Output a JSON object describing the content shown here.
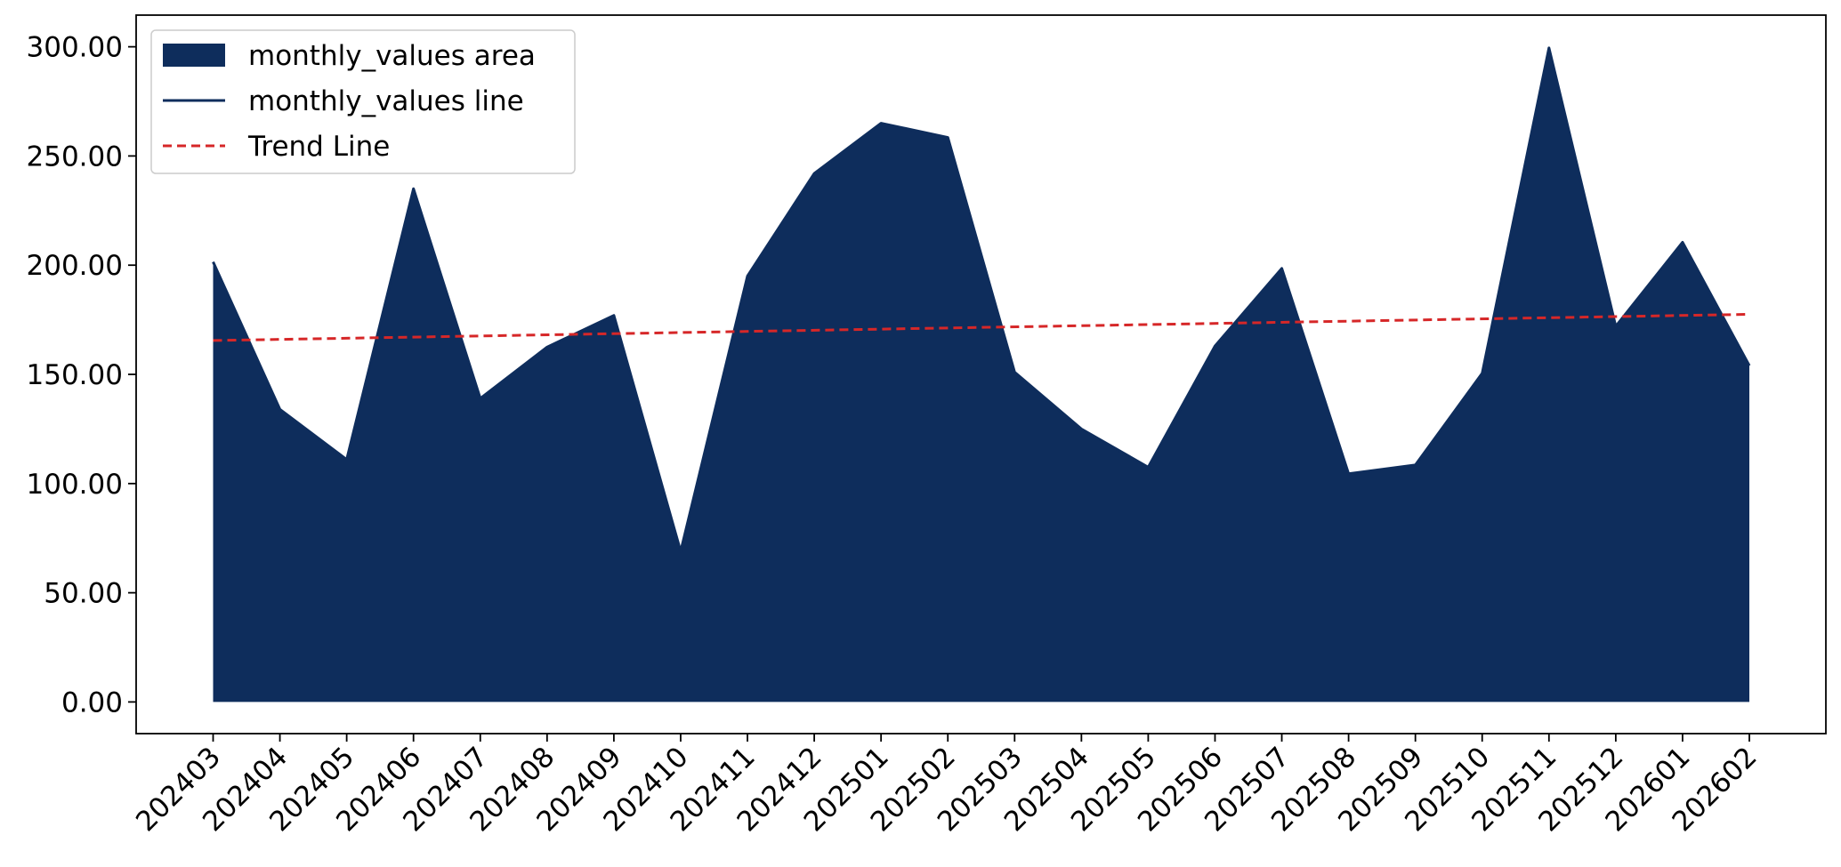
{
  "chart_data": {
    "type": "area",
    "categories": [
      "202403",
      "202404",
      "202405",
      "202406",
      "202407",
      "202408",
      "202409",
      "202410",
      "202411",
      "202412",
      "202501",
      "202502",
      "202503",
      "202504",
      "202505",
      "202506",
      "202507",
      "202508",
      "202509",
      "202510",
      "202511",
      "202512",
      "202601",
      "202602"
    ],
    "series": [
      {
        "name": "monthly_values area",
        "kind": "area",
        "color": "#0e2d5c",
        "values": [
          201.5,
          134.0,
          111.0,
          235.0,
          139.0,
          162.5,
          177.0,
          69.0,
          195.0,
          242.0,
          265.0,
          258.5,
          151.0,
          125.0,
          107.5,
          163.0,
          198.5,
          104.5,
          108.5,
          150.5,
          299.5,
          172.0,
          210.5,
          154.0
        ]
      },
      {
        "name": "monthly_values line",
        "kind": "line",
        "color": "#0e2d5c",
        "values": [
          201.5,
          134.0,
          111.0,
          235.0,
          139.0,
          162.5,
          177.0,
          69.0,
          195.0,
          242.0,
          265.0,
          258.5,
          151.0,
          125.0,
          107.5,
          163.0,
          198.5,
          104.5,
          108.5,
          150.5,
          299.5,
          172.0,
          210.5,
          154.0
        ]
      },
      {
        "name": "Trend Line",
        "kind": "trend",
        "color": "#d62728",
        "start": 165.5,
        "end": 177.5
      }
    ],
    "yticks": [
      "0.00",
      "50.00",
      "100.00",
      "150.00",
      "200.00",
      "250.00",
      "300.00"
    ],
    "ytick_values": [
      0,
      50,
      100,
      150,
      200,
      250,
      300
    ],
    "ylim": [
      -14.5,
      314.5
    ],
    "legend_placement": "top-left",
    "grid": false
  }
}
